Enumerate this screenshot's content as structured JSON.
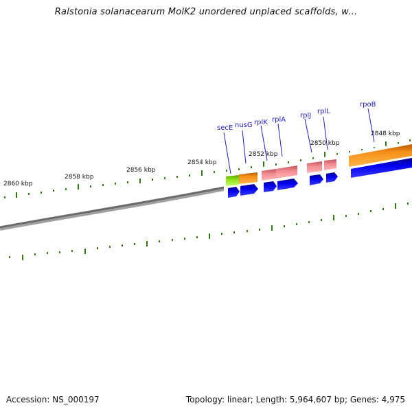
{
  "header": {
    "title": "Ralstonia solanacearum MolK2 unordered unplaced scaffolds, w..."
  },
  "footer": {
    "accession": "Accession: NS_000197",
    "summary": "Topology: linear; Length: 5,964,607 bp; Genes: 4,975"
  },
  "scale_labels": [
    "2860 kbp",
    "2858 kbp",
    "2856 kbp",
    "2854 kbp",
    "2852 kbp",
    "2850 kbp",
    "2848 kbp"
  ],
  "genes": [
    "secE",
    "nusG",
    "rplK",
    "rplA",
    "rplJ",
    "rplL",
    "rpoB"
  ],
  "colors": {
    "backbone": "#808080",
    "tick": "#2e7d10",
    "gene_label": "#1a1acc",
    "cds": "#0000ee",
    "secE_gene": "#8ee01a",
    "nusG_gene": "#f4901a",
    "rpoB_gene": "#f4901a",
    "rp_gene": "#f08a90"
  }
}
